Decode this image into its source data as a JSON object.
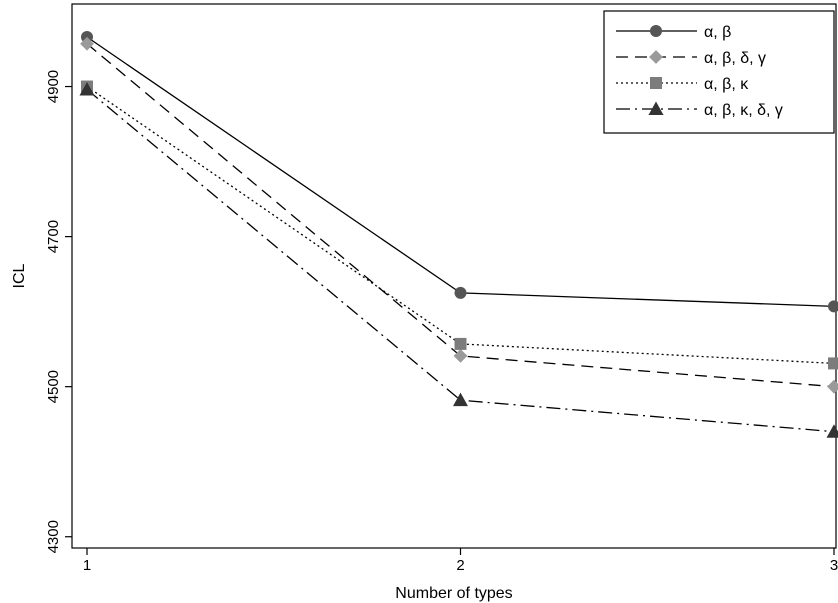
{
  "chart_data": {
    "type": "line",
    "title": "",
    "xlabel": "Number of types",
    "ylabel": "ICL",
    "x": [
      1,
      2,
      3
    ],
    "xticks": [
      "1",
      "2",
      "3"
    ],
    "yticks": [
      "4300",
      "4500",
      "4700",
      "4900"
    ],
    "xlim": [
      1,
      3
    ],
    "ylim": [
      4285,
      5010
    ],
    "grid": false,
    "legend_position": "top-right",
    "series": [
      {
        "name": "α, β",
        "values": [
          4966,
          4625,
          4607
        ],
        "marker": "circle",
        "line_style": "solid",
        "color": "#555555"
      },
      {
        "name": "α, β, δ, γ",
        "values": [
          4957,
          4541,
          4500
        ],
        "marker": "diamond",
        "line_style": "dashed",
        "color": "#9a9a9a"
      },
      {
        "name": "α, β, κ",
        "values": [
          4900,
          4557,
          4531
        ],
        "marker": "square",
        "line_style": "dotted",
        "color": "#7c7c7c"
      },
      {
        "name": "α, β, κ, δ, γ",
        "values": [
          4896,
          4482,
          4440
        ],
        "marker": "triangle",
        "line_style": "dashdot",
        "color": "#333333"
      }
    ]
  }
}
